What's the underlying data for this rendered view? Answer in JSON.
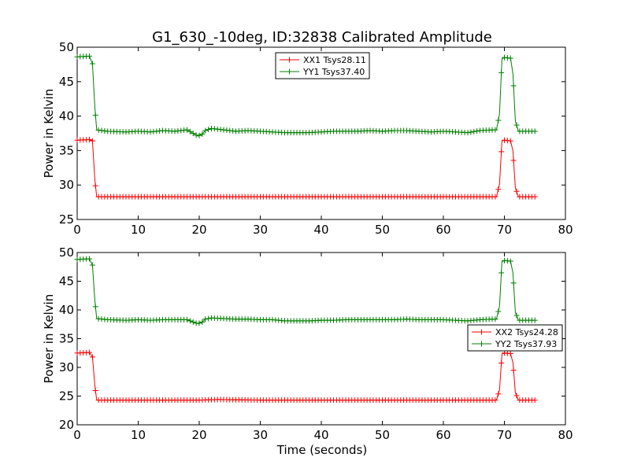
{
  "figure": {
    "title": "G1_630_-10deg, ID:32838 Calibrated Amplitude",
    "xlabel": "Time (seconds)"
  },
  "chart_data": [
    {
      "type": "line",
      "ylabel": "Power in Kelvin",
      "xlim": [
        0,
        80
      ],
      "ylim": [
        25,
        50
      ],
      "xticks": [
        "0",
        "10",
        "20",
        "30",
        "40",
        "50",
        "60",
        "70",
        "80"
      ],
      "yticks": [
        "25",
        "30",
        "35",
        "40",
        "45",
        "50"
      ],
      "grid": false,
      "legend": "top-center",
      "marker": "+",
      "series": [
        {
          "name": "XX1 Tsys28.11",
          "color": "#ff0000",
          "points": [
            [
              0,
              36.5
            ],
            [
              2,
              36.6
            ],
            [
              2.5,
              36.4
            ],
            [
              2.9,
              30.7
            ],
            [
              3.2,
              28.3
            ],
            [
              10,
              28.3
            ],
            [
              20,
              28.3
            ],
            [
              30,
              28.3
            ],
            [
              40,
              28.3
            ],
            [
              50,
              28.3
            ],
            [
              60,
              28.3
            ],
            [
              68.7,
              28.3
            ],
            [
              69.2,
              30.1
            ],
            [
              69.6,
              36.4
            ],
            [
              70,
              36.5
            ],
            [
              71,
              36.4
            ],
            [
              71.4,
              34.9
            ],
            [
              71.8,
              29.6
            ],
            [
              72.3,
              28.3
            ],
            [
              75,
              28.3
            ]
          ]
        },
        {
          "name": "YY1 Tsys37.40",
          "color": "#008000",
          "points": [
            [
              0,
              48.6
            ],
            [
              2,
              48.7
            ],
            [
              2.5,
              47.6
            ],
            [
              2.9,
              41.2
            ],
            [
              3.2,
              38.0
            ],
            [
              5,
              37.8
            ],
            [
              8,
              37.7
            ],
            [
              10,
              37.8
            ],
            [
              12,
              37.7
            ],
            [
              14,
              37.9
            ],
            [
              16,
              37.8
            ],
            [
              18,
              38.0
            ],
            [
              19,
              37.5
            ],
            [
              19.8,
              37.1
            ],
            [
              20.5,
              37.4
            ],
            [
              21,
              37.9
            ],
            [
              22,
              38.2
            ],
            [
              24,
              38.0
            ],
            [
              26,
              37.8
            ],
            [
              28,
              37.9
            ],
            [
              30,
              37.8
            ],
            [
              32,
              37.7
            ],
            [
              34,
              37.6
            ],
            [
              36,
              37.6
            ],
            [
              38,
              37.6
            ],
            [
              40,
              37.7
            ],
            [
              42,
              37.8
            ],
            [
              44,
              37.8
            ],
            [
              46,
              37.8
            ],
            [
              48,
              37.9
            ],
            [
              50,
              37.8
            ],
            [
              52,
              37.9
            ],
            [
              54,
              37.9
            ],
            [
              56,
              37.8
            ],
            [
              58,
              37.7
            ],
            [
              60,
              37.8
            ],
            [
              62,
              37.7
            ],
            [
              64,
              37.6
            ],
            [
              66,
              37.9
            ],
            [
              68,
              38.0
            ],
            [
              68.7,
              38.0
            ],
            [
              69.2,
              40.3
            ],
            [
              69.6,
              48.3
            ],
            [
              70,
              48.5
            ],
            [
              71,
              48.4
            ],
            [
              71.4,
              46.1
            ],
            [
              71.8,
              39.3
            ],
            [
              72.3,
              37.8
            ],
            [
              75,
              37.8
            ]
          ]
        }
      ]
    },
    {
      "type": "line",
      "ylabel": "Power in Kelvin",
      "xlabel": "Time (seconds)",
      "xlim": [
        0,
        80
      ],
      "ylim": [
        20,
        50
      ],
      "xticks": [
        "0",
        "10",
        "20",
        "30",
        "40",
        "50",
        "60",
        "70",
        "80"
      ],
      "yticks": [
        "20",
        "25",
        "30",
        "35",
        "40",
        "45",
        "50"
      ],
      "grid": false,
      "legend": "right",
      "marker": "+",
      "series": [
        {
          "name": "XX2 Tsys24.28",
          "color": "#ff0000",
          "points": [
            [
              0,
              32.5
            ],
            [
              2,
              32.6
            ],
            [
              2.5,
              31.8
            ],
            [
              2.9,
              26.8
            ],
            [
              3.2,
              24.3
            ],
            [
              10,
              24.3
            ],
            [
              20,
              24.3
            ],
            [
              23,
              24.4
            ],
            [
              30,
              24.3
            ],
            [
              40,
              24.3
            ],
            [
              50,
              24.3
            ],
            [
              60,
              24.3
            ],
            [
              68.7,
              24.3
            ],
            [
              69.2,
              26.1
            ],
            [
              69.6,
              32.3
            ],
            [
              70,
              32.5
            ],
            [
              71,
              32.4
            ],
            [
              71.4,
              30.8
            ],
            [
              71.8,
              25.6
            ],
            [
              72.3,
              24.3
            ],
            [
              75,
              24.3
            ]
          ]
        },
        {
          "name": "YY2 Tsys37.93",
          "color": "#008000",
          "points": [
            [
              0,
              48.8
            ],
            [
              2,
              48.9
            ],
            [
              2.5,
              47.8
            ],
            [
              2.9,
              41.6
            ],
            [
              3.2,
              38.5
            ],
            [
              5,
              38.3
            ],
            [
              8,
              38.2
            ],
            [
              10,
              38.3
            ],
            [
              12,
              38.2
            ],
            [
              14,
              38.3
            ],
            [
              16,
              38.3
            ],
            [
              18,
              38.3
            ],
            [
              19,
              37.9
            ],
            [
              19.8,
              37.6
            ],
            [
              20.5,
              37.9
            ],
            [
              21,
              38.4
            ],
            [
              22,
              38.6
            ],
            [
              24,
              38.5
            ],
            [
              26,
              38.4
            ],
            [
              28,
              38.4
            ],
            [
              30,
              38.3
            ],
            [
              32,
              38.3
            ],
            [
              34,
              38.1
            ],
            [
              36,
              38.1
            ],
            [
              38,
              38.1
            ],
            [
              40,
              38.2
            ],
            [
              42,
              38.2
            ],
            [
              44,
              38.3
            ],
            [
              46,
              38.3
            ],
            [
              48,
              38.3
            ],
            [
              50,
              38.3
            ],
            [
              52,
              38.3
            ],
            [
              54,
              38.4
            ],
            [
              56,
              38.3
            ],
            [
              58,
              38.3
            ],
            [
              60,
              38.3
            ],
            [
              62,
              38.2
            ],
            [
              64,
              38.1
            ],
            [
              66,
              38.3
            ],
            [
              68,
              38.4
            ],
            [
              68.7,
              38.4
            ],
            [
              69.2,
              40.6
            ],
            [
              69.6,
              48.4
            ],
            [
              70,
              48.6
            ],
            [
              71,
              48.5
            ],
            [
              71.4,
              46.4
            ],
            [
              71.8,
              39.6
            ],
            [
              72.3,
              38.2
            ],
            [
              75,
              38.2
            ]
          ]
        }
      ]
    }
  ]
}
